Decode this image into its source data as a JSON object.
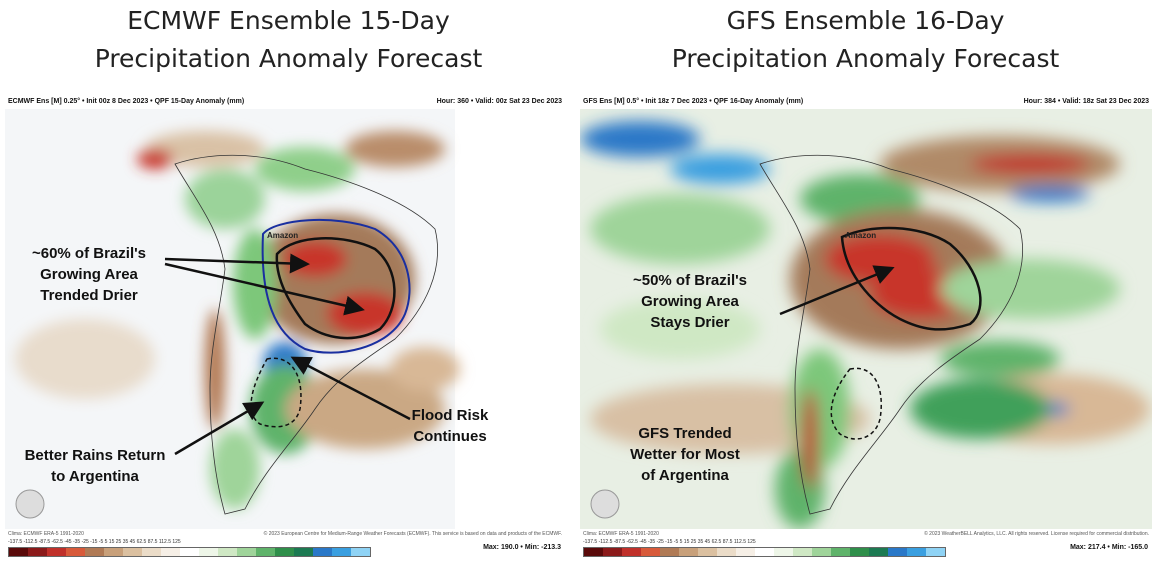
{
  "titles": {
    "left_line1": "ECMWF Ensemble 15-Day",
    "left_line2": "Precipitation Anomaly Forecast",
    "right_line1": "GFS Ensemble 16-Day",
    "right_line2": "Precipitation Anomaly Forecast"
  },
  "left_map": {
    "header_left": "ECMWF Ens [M] 0.25° • Init 00z 8 Dec 2023 • QPF 15-Day Anomaly (mm)",
    "header_right": "Hour: 360 • Valid: 00z Sat 23 Dec 2023",
    "region_label": "Amazon",
    "annotations": {
      "drier_l1": "~60% of Brazil's",
      "drier_l2": "Growing Area",
      "drier_l3": "Trended Drier",
      "flood_l1": "Flood Risk",
      "flood_l2": "Continues",
      "argentina_l1": "Better Rains Return",
      "argentina_l2": "to Argentina"
    },
    "footer_left": "Clima: ECMWF ERA-5 1991-2020",
    "footer_right": "© 2023 European Centre for Medium-Range Weather Forecasts (ECMWF). This service is based on data and products of the ECMWF.",
    "max_min": "Max: 190.0 • Min: -213.3"
  },
  "right_map": {
    "header_left": "GFS Ens [M] 0.5° • Init 18z 7 Dec 2023 • QPF 16-Day Anomaly (mm)",
    "header_right": "Hour: 384 • Valid: 18z Sat 23 Dec 2023",
    "region_label": "Amazon",
    "annotations": {
      "drier_l1": "~50% of Brazil's",
      "drier_l2": "Growing Area",
      "drier_l3": "Stays Drier",
      "argentina_l1": "GFS Trended",
      "argentina_l2": "Wetter for Most",
      "argentina_l3": "of Argentina"
    },
    "footer_left": "Clima: ECMWF ERA-5 1991-2020",
    "footer_right": "© 2023 WeatherBELL Analytics, LLC. All rights reserved. License required for commercial distribution.",
    "max_min": "Max: 217.4 • Min: -165.0"
  },
  "legend": {
    "ticks": "-137.5  -112.5  -87.5  -62.5  -45  -35  -25  -15  -5  5  15  25  35  45  62.5  87.5  112.5  125",
    "colors": [
      "#5a0a0a",
      "#8b1a1a",
      "#c0302a",
      "#d85a3a",
      "#b07a55",
      "#c8a07a",
      "#dbc0a0",
      "#ebdcc8",
      "#f6efe6",
      "#ffffff",
      "#eef6e8",
      "#cfe8c4",
      "#9fd49a",
      "#5fb36a",
      "#2f8f4a",
      "#1c7a52",
      "#2a78c8",
      "#3a9fe0",
      "#8fd3f5"
    ]
  },
  "watermark": "WeatherBELL"
}
